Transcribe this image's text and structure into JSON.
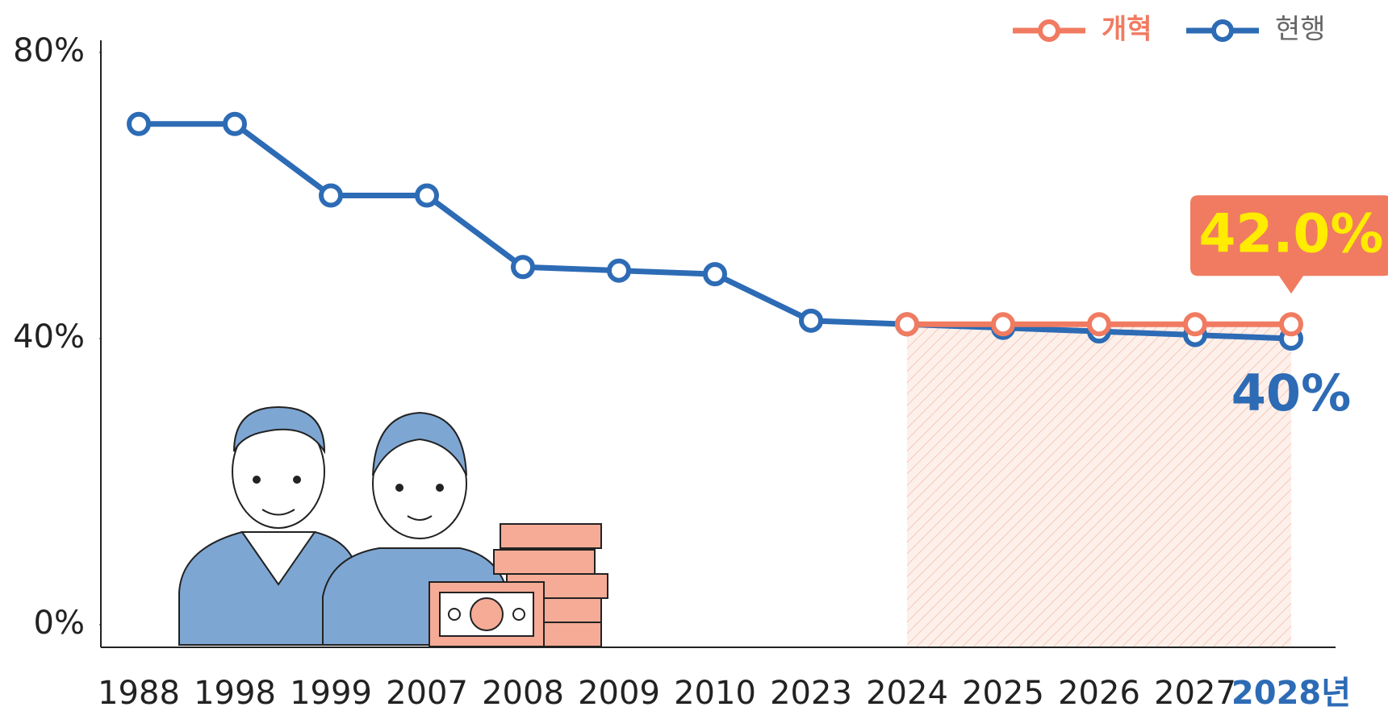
{
  "chart_data": {
    "type": "line",
    "categories": [
      "1988",
      "1998",
      "1999",
      "2007",
      "2008",
      "2009",
      "2010",
      "2023",
      "2024",
      "2025",
      "2026",
      "2027",
      "2028년"
    ],
    "series": [
      {
        "name": "개혁",
        "color": "#f07b61",
        "values": [
          null,
          null,
          null,
          null,
          null,
          null,
          null,
          null,
          42,
          42,
          42,
          42,
          42
        ],
        "value_labels": [
          null,
          null,
          null,
          null,
          null,
          null,
          null,
          null,
          null,
          null,
          null,
          null,
          "42.0%"
        ]
      },
      {
        "name": "현행",
        "color": "#2d6bb5",
        "values": [
          70,
          70,
          60,
          60,
          50,
          49.5,
          49,
          42.5,
          42,
          41.5,
          41,
          40.5,
          40
        ],
        "value_labels": [
          null,
          null,
          null,
          null,
          null,
          null,
          null,
          null,
          null,
          null,
          null,
          null,
          "40%"
        ]
      }
    ],
    "ylim": [
      0,
      80
    ],
    "yticks": [
      {
        "value": 0,
        "label": "0%"
      },
      {
        "value": 40,
        "label": "40%"
      },
      {
        "value": 80,
        "label": "80%"
      }
    ]
  }
}
